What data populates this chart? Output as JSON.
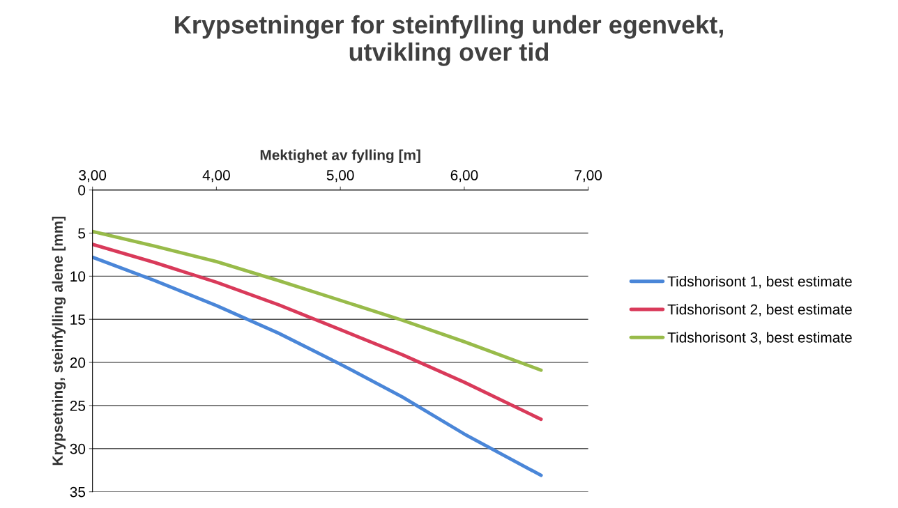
{
  "chart_data": {
    "type": "line",
    "title": "Krypsetninger for steinfylling under egenvekt,\nutvikling over tid",
    "xlabel": "Mektighet av fylling [m]",
    "ylabel": "Krypsetning, steinfylling alene [mm]",
    "x": [
      3.0,
      3.5,
      4.0,
      4.5,
      5.0,
      5.5,
      6.0,
      6.62
    ],
    "series": [
      {
        "name": "Tidshorisont 1, best estimate",
        "color": "#4a86d8",
        "values": [
          7.8,
          10.5,
          13.4,
          16.6,
          20.2,
          24.0,
          28.3,
          33.1
        ]
      },
      {
        "name": "Tidshorisont 2, best estimate",
        "color": "#d93a5a",
        "values": [
          6.3,
          8.4,
          10.7,
          13.3,
          16.2,
          19.1,
          22.3,
          26.6
        ]
      },
      {
        "name": "Tidshorisont 3, best estimate",
        "color": "#98bb4a",
        "values": [
          4.8,
          6.5,
          8.3,
          10.5,
          12.8,
          15.1,
          17.6,
          20.9
        ]
      }
    ],
    "xlim": [
      3.0,
      7.0
    ],
    "xticks": [
      {
        "value": 3,
        "label": "3,00"
      },
      {
        "value": 4,
        "label": "4,00"
      },
      {
        "value": 5,
        "label": "5,00"
      },
      {
        "value": 6,
        "label": "6,00"
      },
      {
        "value": 7,
        "label": "7,00"
      }
    ],
    "ylim": [
      35,
      0
    ],
    "yticks": [
      0,
      5,
      10,
      15,
      20,
      25,
      30,
      35
    ],
    "grid": "y",
    "legend": "right",
    "marker": "none",
    "line_style": "solid"
  }
}
